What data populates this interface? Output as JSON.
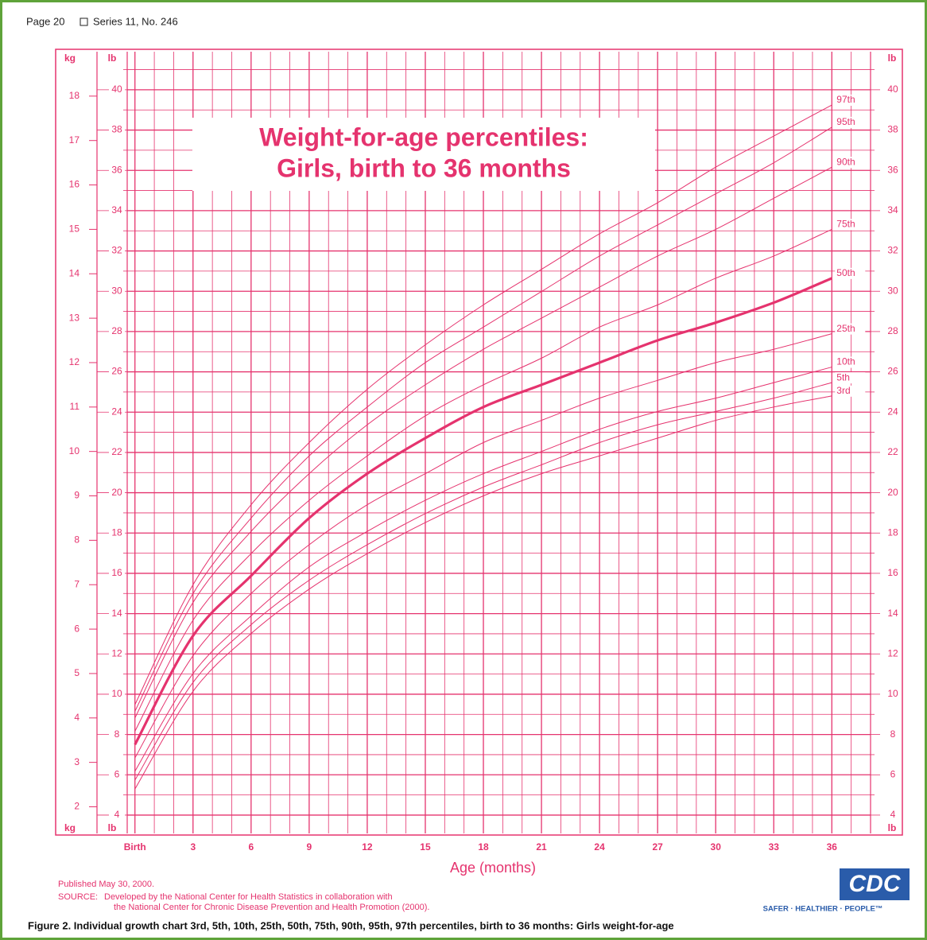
{
  "header": {
    "page": "Page 20",
    "series": "Series 11, No. 246"
  },
  "chart_data": {
    "type": "line",
    "title": "Weight-for-age percentiles:",
    "subtitle": "Girls, birth to 36 months",
    "xlabel": "Age (months)",
    "ylabel": "kg",
    "y2label": "lb",
    "color": "#e5336e",
    "grid": true,
    "x": [
      0,
      3,
      6,
      9,
      12,
      15,
      18,
      21,
      24,
      27,
      30,
      33,
      36
    ],
    "xlim": [
      -0.4,
      38
    ],
    "xticks": [
      {
        "value": 0,
        "label": "Birth"
      },
      3,
      6,
      9,
      12,
      15,
      18,
      21,
      24,
      27,
      30,
      33,
      36
    ],
    "xminorticks": [
      1,
      2,
      4,
      5,
      7,
      8,
      10,
      11,
      13,
      14,
      16,
      17,
      19,
      20,
      22,
      23,
      25,
      26,
      28,
      29,
      31,
      32,
      34,
      35,
      37
    ],
    "ylim": [
      1.4,
      19.0
    ],
    "yticks": [
      2,
      3,
      4,
      5,
      6,
      7,
      8,
      9,
      10,
      11,
      12,
      13,
      14,
      15,
      16,
      17,
      18
    ],
    "y2lim": [
      3.09,
      41.89
    ],
    "y2ticks": [
      4,
      6,
      8,
      10,
      12,
      14,
      16,
      18,
      20,
      22,
      24,
      26,
      28,
      30,
      32,
      34,
      36,
      38,
      40
    ],
    "y2minorticks": [
      5,
      7,
      9,
      11,
      13,
      15,
      17,
      19,
      21,
      23,
      25,
      27,
      29,
      31,
      33,
      35,
      37,
      39,
      41
    ],
    "series": [
      {
        "name": "97th",
        "values": [
          4.3,
          7.0,
          8.8,
          10.2,
          11.4,
          12.4,
          13.3,
          14.1,
          14.9,
          15.6,
          16.4,
          17.1,
          17.8
        ]
      },
      {
        "name": "95th",
        "values": [
          4.15,
          6.8,
          8.5,
          9.9,
          11.0,
          12.0,
          12.8,
          13.6,
          14.4,
          15.1,
          15.8,
          16.5,
          17.3
        ]
      },
      {
        "name": "90th",
        "values": [
          4.0,
          6.6,
          8.2,
          9.5,
          10.6,
          11.5,
          12.3,
          13.0,
          13.7,
          14.4,
          15.0,
          15.7,
          16.4
        ]
      },
      {
        "name": "75th",
        "values": [
          3.7,
          6.2,
          7.7,
          8.9,
          9.9,
          10.8,
          11.5,
          12.1,
          12.8,
          13.3,
          13.9,
          14.4,
          15.0
        ]
      },
      {
        "name": "50th",
        "style": "bold",
        "values": [
          3.4,
          5.85,
          7.2,
          8.5,
          9.5,
          10.3,
          11.0,
          11.5,
          12.0,
          12.5,
          12.9,
          13.35,
          13.9
        ]
      },
      {
        "name": "25th",
        "values": [
          3.1,
          5.4,
          6.8,
          7.9,
          8.8,
          9.5,
          10.2,
          10.7,
          11.2,
          11.6,
          12.0,
          12.3,
          12.65
        ]
      },
      {
        "name": "10th",
        "values": [
          2.8,
          5.0,
          6.3,
          7.4,
          8.2,
          8.9,
          9.5,
          10.0,
          10.5,
          10.9,
          11.2,
          11.55,
          11.9
        ]
      },
      {
        "name": "5th",
        "values": [
          2.6,
          4.8,
          6.1,
          7.1,
          7.9,
          8.6,
          9.2,
          9.7,
          10.2,
          10.6,
          10.9,
          11.2,
          11.55
        ]
      },
      {
        "name": "3rd",
        "values": [
          2.4,
          4.6,
          5.9,
          6.9,
          7.7,
          8.4,
          9.0,
          9.5,
          9.9,
          10.3,
          10.7,
          11.0,
          11.25
        ]
      }
    ]
  },
  "footer": {
    "published": "Published May 30, 2000.",
    "source_label": "SOURCE:",
    "source_lines": [
      "Developed by the National Center for Health Statistics in collaboration with",
      "the National Center for Chronic Disease Prevention and Health Promotion (2000)."
    ],
    "logo": "CDC",
    "tagline": "SAFER · HEALTHIER · PEOPLE™"
  },
  "caption": "Figure 2. Individual growth chart 3rd, 5th, 10th, 25th, 50th, 75th, 90th, 95th, 97th percentiles, birth to 36 months: Girls weight-for-age"
}
